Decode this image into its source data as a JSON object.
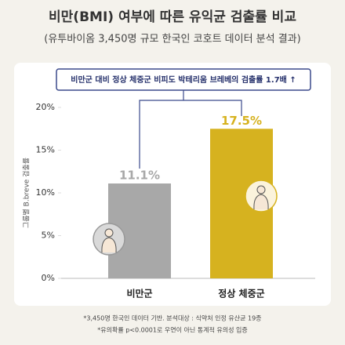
{
  "chart_data": {
    "type": "bar",
    "title": "비만(BMI) 여부에 따른 유익균 검출률 비교",
    "subtitle": "(유투바이옴 3,450명 규모 한국인 코호트 데이터 분석 결과)",
    "annotation": "비만군 대비 정상 체중군 비피도 박테리움 브레베의 검출률 1.7배 ↑",
    "y_label": "그룹별 B.breve 검출률",
    "categories": [
      "비만군",
      "정상 체중군"
    ],
    "values": [
      11.1,
      17.5
    ],
    "value_labels": [
      "11.1%",
      "17.5%"
    ],
    "colors": [
      "#a8a8a8",
      "#d6b21f"
    ],
    "ylim": [
      0,
      20
    ],
    "yticks": [
      {
        "value": 0,
        "label": "0%"
      },
      {
        "value": 5,
        "label": "5%"
      },
      {
        "value": 10,
        "label": "10%"
      },
      {
        "value": 15,
        "label": "15%"
      },
      {
        "value": 20,
        "label": "20%"
      }
    ],
    "grid": false,
    "footnotes": [
      "*3,450명 한국인 데이터 기반. 분석대상 : 식약처 인정 유산균 19종",
      "*유의확률 p<0.0001로 우연이 아닌 통계적 유의성 입증"
    ]
  }
}
